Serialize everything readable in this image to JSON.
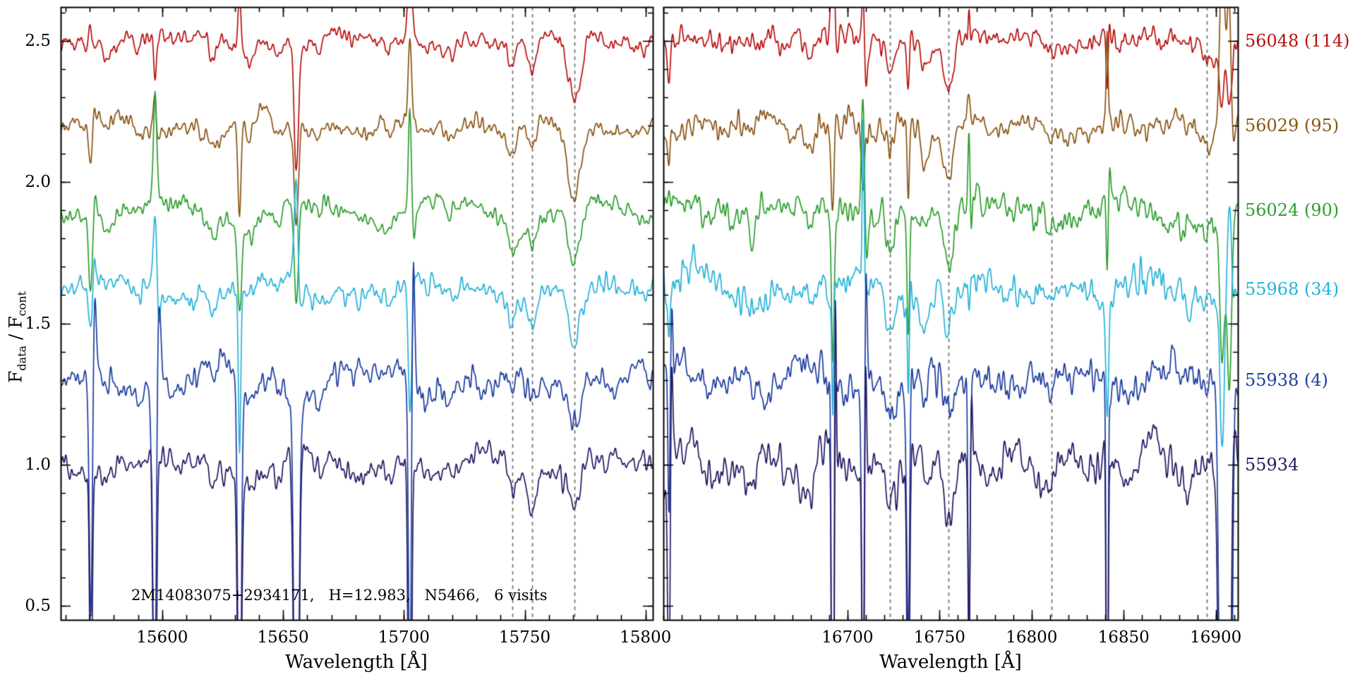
{
  "annotation": "2M14083075+2934171,   H=12.983,   N5466,   6 visits",
  "chart_data": {
    "type": "line",
    "title": "",
    "xlabel": "Wavelength [Å]",
    "ylabel": "F_data / F_cont",
    "ylabel_parts": {
      "pre": "F",
      "sub1": "data",
      "mid": " / F",
      "sub2": "cont"
    },
    "ylim": [
      0.45,
      2.62
    ],
    "yticks": [
      0.5,
      1.0,
      1.5,
      2.0,
      2.5
    ],
    "y_minor_step": 0.1,
    "grid": false,
    "legend_position": "right-outside",
    "dashed_line_color": "#787878",
    "panels": [
      {
        "name": "left",
        "xlim": [
          15558,
          15803
        ],
        "xticks": [
          15600,
          15650,
          15700,
          15750,
          15800
        ],
        "x_minor_step": 10,
        "dashed_lines": [
          15745,
          15753,
          15770.5
        ],
        "sky_spikes": [
          {
            "x": 15570.5,
            "amp": 0.55
          },
          {
            "x": 15597.0,
            "amp": 0.95
          },
          {
            "x": 15632.0,
            "amp": 1.05
          },
          {
            "x": 15655.5,
            "amp": 1.5,
            "w": 0.9
          },
          {
            "x": 15702.5,
            "amp": 0.85
          }
        ],
        "absorption_features": [
          {
            "x": 15577.0,
            "depth": 0.04,
            "width": 2.0
          },
          {
            "x": 15590.0,
            "depth": 0.05,
            "width": 2.5
          },
          {
            "x": 15621.0,
            "depth": 0.06,
            "width": 2.5
          },
          {
            "x": 15636.0,
            "depth": 0.05,
            "width": 3.0
          },
          {
            "x": 15648.0,
            "depth": 0.04,
            "width": 2.5
          },
          {
            "x": 15665.0,
            "depth": 0.04,
            "width": 2.5
          },
          {
            "x": 15694.0,
            "depth": 0.05,
            "width": 2.5
          },
          {
            "x": 15720.0,
            "depth": 0.04,
            "width": 3.0
          },
          {
            "x": 15745.0,
            "depth": 0.1,
            "width": 3.0
          },
          {
            "x": 15753.0,
            "depth": 0.12,
            "width": 3.0
          },
          {
            "x": 15770.5,
            "depth": 0.2,
            "width": 4.0
          }
        ]
      },
      {
        "name": "right",
        "xlim": [
          16600,
          16912
        ],
        "xticks": [
          16700,
          16750,
          16800,
          16850,
          16900
        ],
        "x_minor_step": 10,
        "dashed_lines": [
          16723,
          16755,
          16811,
          16895
        ],
        "sky_spikes": [
          {
            "x": 16603.0,
            "amp": 0.5
          },
          {
            "x": 16692.0,
            "amp": 1.7
          },
          {
            "x": 16708.5,
            "amp": 1.25
          },
          {
            "x": 16733.0,
            "amp": 0.85
          },
          {
            "x": 16766.0,
            "amp": 0.55
          },
          {
            "x": 16841.0,
            "amp": 1.35
          },
          {
            "x": 16903.5,
            "amp": 1.9,
            "w": 1.4
          },
          {
            "x": 16907.5,
            "amp": 1.6,
            "w": 1.2
          }
        ],
        "absorption_features": [
          {
            "x": 16648.0,
            "depth": 0.04,
            "width": 3.0
          },
          {
            "x": 16680.0,
            "depth": 0.05,
            "width": 3.0
          },
          {
            "x": 16692.0,
            "depth": 0.06,
            "width": 3.0
          },
          {
            "x": 16710.0,
            "depth": 0.05,
            "width": 3.0
          },
          {
            "x": 16723.0,
            "depth": 0.13,
            "width": 3.5
          },
          {
            "x": 16742.0,
            "depth": 0.06,
            "width": 3.0
          },
          {
            "x": 16755.0,
            "depth": 0.15,
            "width": 4.0
          },
          {
            "x": 16811.0,
            "depth": 0.05,
            "width": 3.0
          },
          {
            "x": 16872.0,
            "depth": 0.03,
            "width": 3.0
          },
          {
            "x": 16895.0,
            "depth": 0.05,
            "width": 3.0
          }
        ]
      }
    ],
    "series": [
      {
        "label": "56048 (114)",
        "color": "#b90f0f",
        "offset": 2.5,
        "noise": [
          0.016,
          0.02
        ],
        "spike_scale": 0.35,
        "seed": 11
      },
      {
        "label": "56029 (95)",
        "color": "#8a5413",
        "offset": 2.2,
        "noise": [
          0.016,
          0.022
        ],
        "spike_scale": 0.4,
        "seed": 22
      },
      {
        "label": "56024 (90)",
        "color": "#2e9e2e",
        "offset": 1.9,
        "noise": [
          0.018,
          0.026
        ],
        "spike_scale": 0.55,
        "seed": 33
      },
      {
        "label": "55968 (34)",
        "color": "#25b3d9",
        "offset": 1.62,
        "noise": [
          0.02,
          0.03
        ],
        "spike_scale": 0.6,
        "seed": 44
      },
      {
        "label": "55938 (4)",
        "color": "#1c3da0",
        "offset": 1.3,
        "noise": [
          0.026,
          0.034
        ],
        "spike_scale": 1.3,
        "seed": 55
      },
      {
        "label": "55934",
        "color": "#241a63",
        "offset": 1.0,
        "noise": [
          0.022,
          0.032
        ],
        "spike_scale": 1.6,
        "seed": 66
      }
    ]
  }
}
